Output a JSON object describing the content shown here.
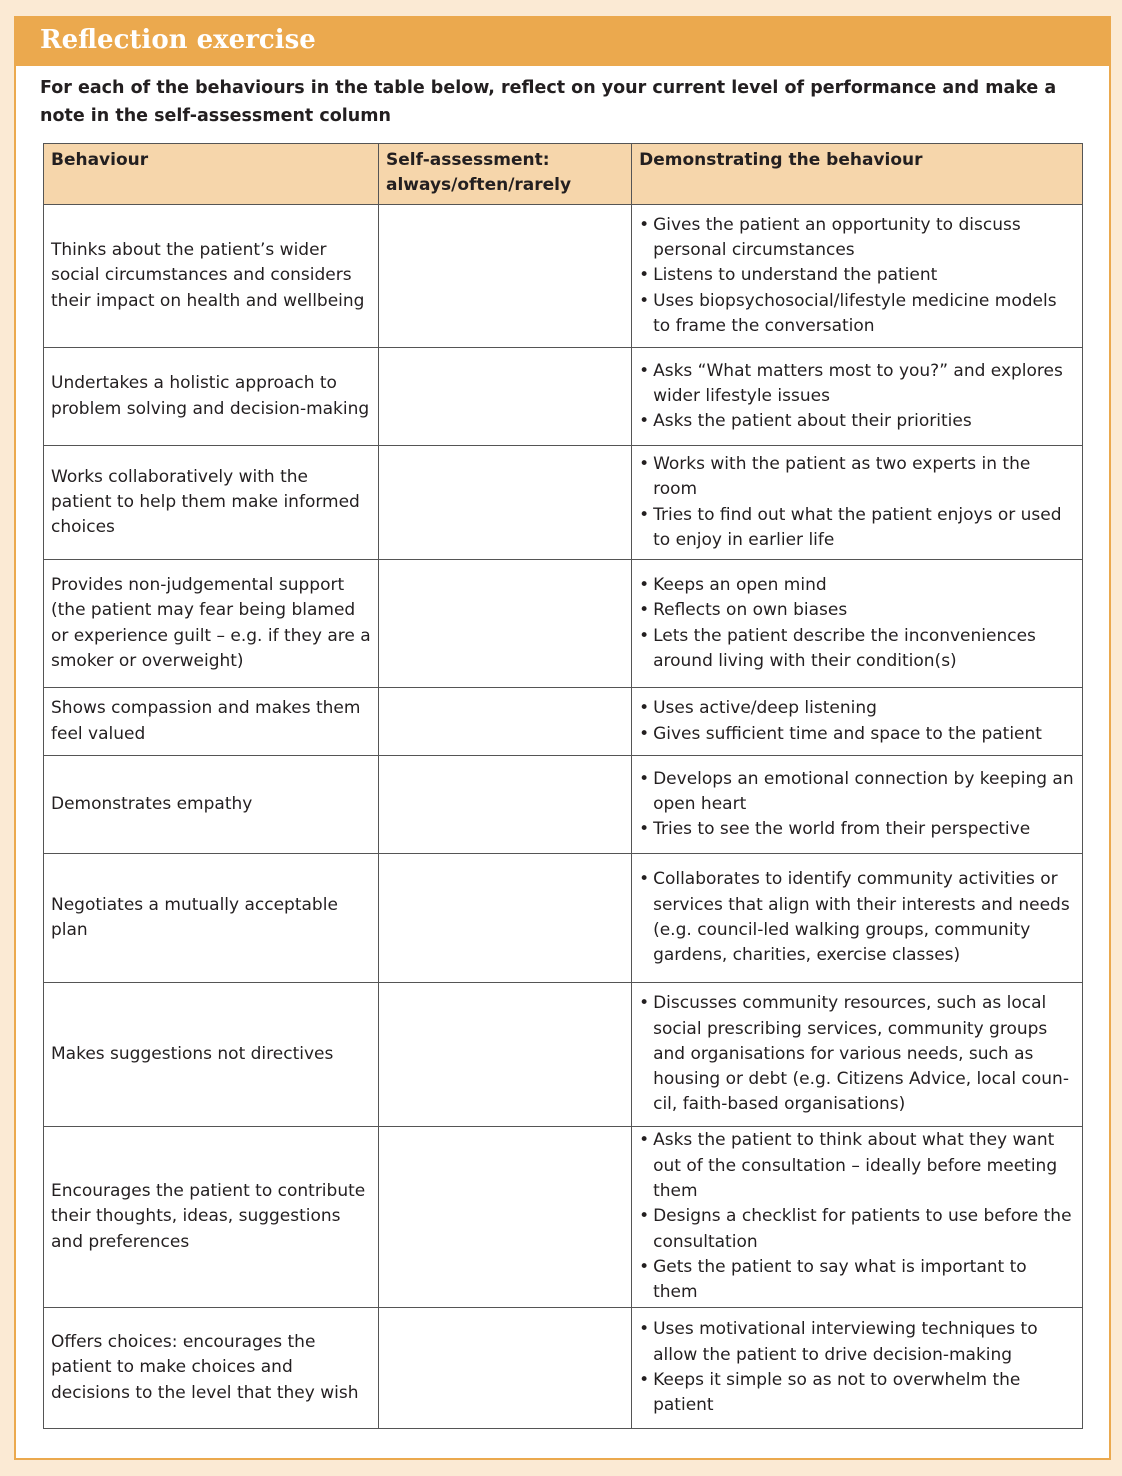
{
  "title": "Reflection exercise",
  "intro": "For each of the behaviours in the table below, reflect on your current level of performance and make a note in the self-assessment column",
  "colors": {
    "accent": "#eba94e",
    "header_fill": "#f6d6ab",
    "background": "#fbead4"
  },
  "table": {
    "headers": [
      "Behaviour",
      "Self-assessment: always/often/rarely",
      "Demonstrating the behaviour"
    ],
    "rows": [
      {
        "behaviour": "Thinks about the patient’s wider social circumstances and considers their impact on health and wellbeing",
        "self_assessment": "",
        "demonstrating": [
          "Gives the patient an opportunity to discuss personal circumstances",
          "Listens to understand the patient",
          "Uses biopsychosocial/lifestyle medicine models to frame the conversation"
        ]
      },
      {
        "behaviour": "Undertakes a holistic approach to problem solving and decision-making",
        "self_assessment": "",
        "demonstrating": [
          "Asks “What matters most to you?” and explores wider lifestyle issues",
          "Asks the patient about their priorities"
        ]
      },
      {
        "behaviour": "Works collaboratively with the patient to help them make informed choices",
        "self_assessment": "",
        "demonstrating": [
          "Works with the patient as two experts in the room",
          "Tries to find out what the patient enjoys or used to enjoy in earlier life"
        ]
      },
      {
        "behaviour": "Provides non-judgemental support (the patient may fear being blamed or experience guilt – e.g. if they are a smoker or overweight)",
        "self_assessment": "",
        "demonstrating": [
          "Keeps an open mind",
          "Reflects on own biases",
          "Lets the patient describe the inconveniences around living with their condition(s)"
        ]
      },
      {
        "behaviour": "Shows compassion and makes them feel valued",
        "self_assessment": "",
        "demonstrating": [
          "Uses active/deep listening",
          "Gives sufficient time and space to the patient"
        ]
      },
      {
        "behaviour": "Demonstrates empathy",
        "self_assessment": "",
        "demonstrating": [
          "Develops an emotional connection by keeping an open heart",
          "Tries to see the world from their perspective"
        ]
      },
      {
        "behaviour": "Negotiates a mutually acceptable plan",
        "self_assessment": "",
        "demonstrating": [
          "Collaborates to identify community activities or services that align with their interests and needs (e.g. council-led walking groups, community gardens, charities, exercise classes)"
        ]
      },
      {
        "behaviour": "Makes suggestions not directives",
        "self_assessment": "",
        "demonstrating": [
          "Discusses community resources, such as local social prescribing services, community groups and organisations for various needs, such as housing or debt (e.g. Citizens Advice, local coun-cil, faith-based organisations)"
        ]
      },
      {
        "behaviour": "Encourages the patient to contribute their thoughts, ideas, suggestions and preferences",
        "self_assessment": "",
        "demonstrating": [
          "Asks the patient to think about what they want out of the consultation – ideally before meeting them",
          "Designs a checklist for patients to use before the consultation",
          "Gets the patient to say what is important to them"
        ]
      },
      {
        "behaviour": "Offers choices: encourages the patient to make choices and decisions to the level that they wish",
        "self_assessment": "",
        "demonstrating": [
          "Uses motivational interviewing techniques to allow the patient to drive decision-making",
          "Keeps it simple so as not to overwhelm the patient"
        ]
      }
    ]
  }
}
